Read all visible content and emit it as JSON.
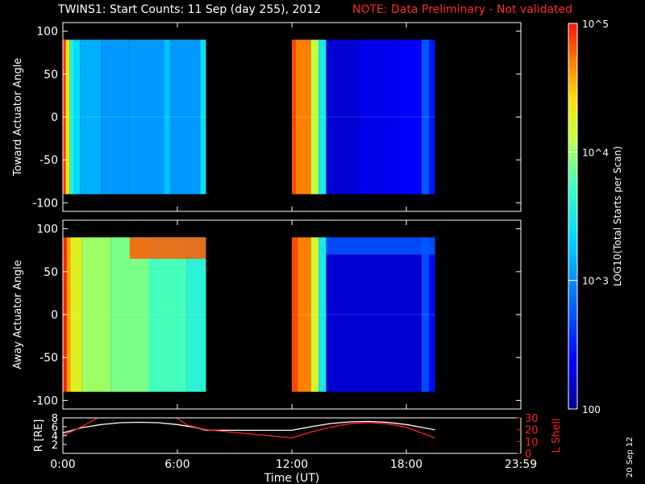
{
  "header": {
    "title": "TWINS1: Start Counts: 11 Sep (day 255), 2012",
    "note": "NOTE: Data Preliminary - Not validated"
  },
  "colorbar": {
    "label": "LOG10(Total Starts per Scan)",
    "ticks": [
      {
        "text": "10^5",
        "value": 100000
      },
      {
        "text": "10^4",
        "value": 10000
      },
      {
        "text": "10^3",
        "value": 1000
      },
      {
        "text": "100",
        "value": 100
      }
    ],
    "scale": "log",
    "range": [
      100,
      100000
    ]
  },
  "stamp": "20 Sep 12",
  "colors": {
    "background": "#000000",
    "axes": "#ffffff",
    "note": "#ff2a2a",
    "lshell": "#ff2020",
    "radius": "#ffffff"
  },
  "chart_data": [
    {
      "type": "heatmap",
      "ylabel": "Toward Actuator Angle",
      "ylim": [
        -110,
        110
      ],
      "yticks": [
        100,
        50,
        0,
        -50,
        -100
      ],
      "xlim": [
        0,
        24
      ],
      "data_y_range": [
        -90,
        90
      ],
      "blocks": [
        {
          "time_range": [
            0.0,
            7.5
          ],
          "columns": [
            {
              "t0": 0.0,
              "t1": 0.15,
              "log": 4.9
            },
            {
              "t0": 0.15,
              "t1": 0.35,
              "log": 4.35
            },
            {
              "t0": 0.35,
              "t1": 0.55,
              "log": 3.6
            },
            {
              "t0": 0.55,
              "t1": 0.9,
              "log": 3.35
            },
            {
              "t0": 0.9,
              "t1": 2.0,
              "log": 3.15
            },
            {
              "t0": 2.0,
              "t1": 3.5,
              "log": 3.05
            },
            {
              "t0": 3.5,
              "t1": 5.3,
              "log": 3.05
            },
            {
              "t0": 5.3,
              "t1": 5.6,
              "log": 3.25
            },
            {
              "t0": 5.6,
              "t1": 7.2,
              "log": 3.05
            },
            {
              "t0": 7.2,
              "t1": 7.5,
              "log": 3.4
            }
          ]
        },
        {
          "time_range": [
            12.0,
            19.5
          ],
          "columns": [
            {
              "t0": 12.0,
              "t1": 12.2,
              "log": 4.85
            },
            {
              "t0": 12.2,
              "t1": 13.0,
              "log": 4.7
            },
            {
              "t0": 13.0,
              "t1": 13.4,
              "log": 4.1
            },
            {
              "t0": 13.4,
              "t1": 13.8,
              "log": 3.5
            },
            {
              "t0": 13.8,
              "t1": 15.5,
              "log": 2.2
            },
            {
              "t0": 15.5,
              "t1": 17.5,
              "log": 2.3
            },
            {
              "t0": 17.5,
              "t1": 18.8,
              "log": 2.35
            },
            {
              "t0": 18.8,
              "t1": 19.2,
              "log": 2.75
            },
            {
              "t0": 19.2,
              "t1": 19.5,
              "log": 2.45
            }
          ]
        }
      ]
    },
    {
      "type": "heatmap",
      "ylabel": "Away Actuator Angle",
      "ylim": [
        -110,
        110
      ],
      "yticks": [
        100,
        50,
        0,
        -50,
        -100
      ],
      "xlim": [
        0,
        24
      ],
      "data_y_range": [
        -90,
        90
      ],
      "blocks": [
        {
          "time_range": [
            0.0,
            7.5
          ],
          "columns": [
            {
              "t0": 0.0,
              "t1": 0.2,
              "log": 4.95
            },
            {
              "t0": 0.2,
              "t1": 0.4,
              "log": 4.6
            },
            {
              "t0": 0.4,
              "t1": 1.0,
              "log": 4.25
            },
            {
              "t0": 1.0,
              "t1": 2.5,
              "log": 4.0
            },
            {
              "t0": 2.5,
              "t1": 4.5,
              "log": 3.9
            },
            {
              "t0": 4.5,
              "t1": 6.5,
              "log": 3.75
            },
            {
              "t0": 6.5,
              "t1": 7.5,
              "log": 3.6
            }
          ],
          "hotspot": {
            "t_range": [
              3.5,
              7.5
            ],
            "angle_range": [
              65,
              90
            ],
            "log": 4.8
          }
        },
        {
          "time_range": [
            12.0,
            19.5
          ],
          "columns": [
            {
              "t0": 12.0,
              "t1": 12.3,
              "log": 4.85
            },
            {
              "t0": 12.3,
              "t1": 13.0,
              "log": 4.7
            },
            {
              "t0": 13.0,
              "t1": 13.4,
              "log": 4.2
            },
            {
              "t0": 13.4,
              "t1": 13.8,
              "log": 3.5
            },
            {
              "t0": 13.8,
              "t1": 18.8,
              "log": 2.2
            },
            {
              "t0": 18.8,
              "t1": 19.2,
              "log": 2.7
            },
            {
              "t0": 19.2,
              "t1": 19.5,
              "log": 2.4
            }
          ],
          "hotspot": {
            "t_range": [
              13.8,
              19.5
            ],
            "angle_range": [
              70,
              90
            ],
            "log": 2.75
          }
        }
      ]
    },
    {
      "type": "line",
      "xlabel": "Time (UT)",
      "ylabel": "R [RE]",
      "y2label": "L Shell",
      "xlim": [
        0,
        24
      ],
      "ylim": [
        0,
        8
      ],
      "y2lim": [
        0,
        30
      ],
      "xticks": [
        {
          "value": 0,
          "label": "0:00"
        },
        {
          "value": 6,
          "label": "6:00"
        },
        {
          "value": 12,
          "label": "12:00"
        },
        {
          "value": 18,
          "label": "18:00"
        },
        {
          "value": 24,
          "label": "23:59"
        }
      ],
      "yticks": [
        8,
        6,
        4,
        2
      ],
      "y2ticks": [
        30,
        20,
        10,
        0
      ],
      "series": [
        {
          "axis": "left",
          "color": "#ffffff",
          "x": [
            0.0,
            1.0,
            2.0,
            3.0,
            4.0,
            5.0,
            6.0,
            7.0,
            7.5,
            12.0,
            13.0,
            14.0,
            15.0,
            16.0,
            17.0,
            18.0,
            19.0,
            19.5
          ],
          "y": [
            4.6,
            5.8,
            6.5,
            6.9,
            7.0,
            6.9,
            6.5,
            5.8,
            5.2,
            5.2,
            6.0,
            6.7,
            7.1,
            7.2,
            7.0,
            6.5,
            5.7,
            5.3
          ]
        },
        {
          "axis": "right",
          "color": "#ff2020",
          "x": [
            0.0,
            0.8,
            1.5,
            2.0,
            5.8,
            6.5,
            7.5,
            12.0,
            13.0,
            14.0,
            15.0,
            16.0,
            17.0,
            18.0,
            19.0,
            19.5
          ],
          "y": [
            15,
            21,
            27,
            32,
            32,
            24,
            20,
            13,
            18,
            22,
            25,
            26,
            25,
            22,
            16,
            13
          ]
        }
      ]
    }
  ]
}
